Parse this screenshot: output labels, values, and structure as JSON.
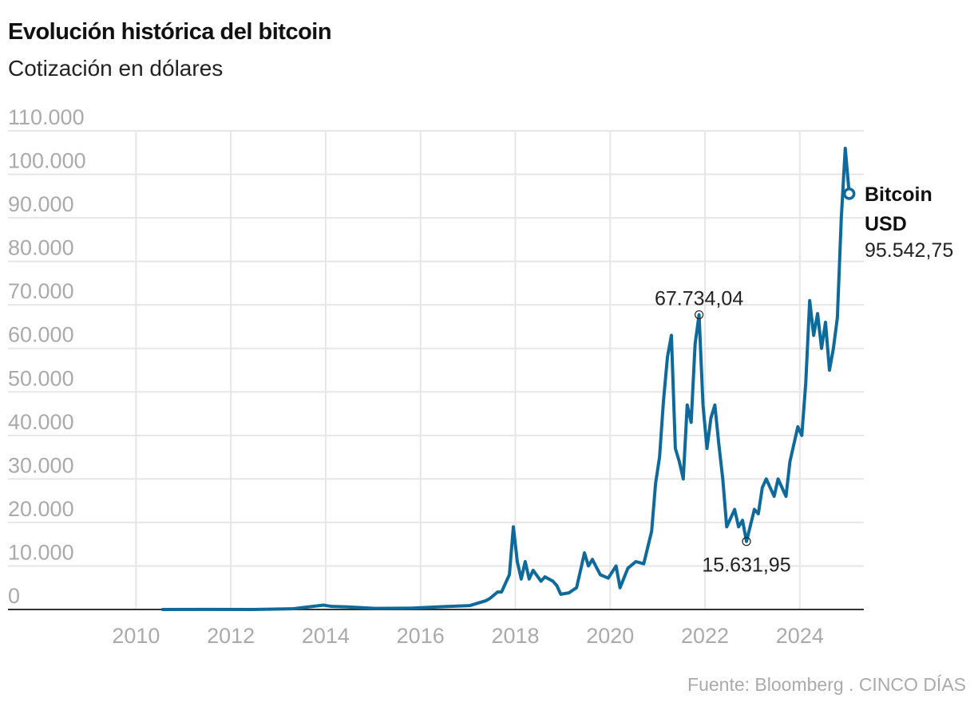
{
  "title": "Evolución histórica del bitcoin",
  "subtitle": "Cotización en dólares",
  "source": "Fuente: Bloomberg . CINCO DÍAS",
  "chart_data": {
    "type": "line",
    "title": "Evolución histórica del bitcoin",
    "subtitle": "Cotización en dólares",
    "xlabel": "",
    "ylabel": "",
    "xlim": [
      2007.3,
      2025.35
    ],
    "ylim": [
      0,
      110000
    ],
    "grid": true,
    "line_color": "#0f6a9c",
    "y_ticks": [
      0,
      10000,
      20000,
      30000,
      40000,
      50000,
      60000,
      70000,
      80000,
      90000,
      100000,
      110000
    ],
    "y_tick_labels": [
      "0",
      "10.000",
      "20.000",
      "30.000",
      "40.000",
      "50.000",
      "60.000",
      "70.000",
      "80.000",
      "90.000",
      "100.000",
      "110.000"
    ],
    "x_ticks": [
      2010,
      2012,
      2014,
      2016,
      2018,
      2020,
      2022,
      2024
    ],
    "x_tick_labels": [
      "2010",
      "2012",
      "2014",
      "2016",
      "2018",
      "2020",
      "2022",
      "2024"
    ],
    "series": [
      {
        "name": "Bitcoin USD",
        "points": [
          [
            "2010-07",
            0.1
          ],
          [
            "2011-06",
            20
          ],
          [
            "2012-06",
            7
          ],
          [
            "2013-04",
            150
          ],
          [
            "2013-12",
            1000
          ],
          [
            "2014-02",
            700
          ],
          [
            "2014-06",
            600
          ],
          [
            "2015-01",
            250
          ],
          [
            "2015-10",
            300
          ],
          [
            "2016-06",
            650
          ],
          [
            "2017-01",
            900
          ],
          [
            "2017-05",
            2000
          ],
          [
            "2017-06",
            2500
          ],
          [
            "2017-08",
            4000
          ],
          [
            "2017-09",
            4000
          ],
          [
            "2017-11",
            8000
          ],
          [
            "2017-12",
            19000
          ],
          [
            "2018-01",
            11000
          ],
          [
            "2018-02",
            7000
          ],
          [
            "2018-03",
            11000
          ],
          [
            "2018-04",
            7000
          ],
          [
            "2018-05",
            9000
          ],
          [
            "2018-07",
            6500
          ],
          [
            "2018-08",
            7500
          ],
          [
            "2018-10",
            6500
          ],
          [
            "2018-11",
            5500
          ],
          [
            "2018-12",
            3500
          ],
          [
            "2019-02",
            3800
          ],
          [
            "2019-04",
            5000
          ],
          [
            "2019-06",
            13000
          ],
          [
            "2019-07",
            10000
          ],
          [
            "2019-08",
            11500
          ],
          [
            "2019-10",
            8000
          ],
          [
            "2019-12",
            7200
          ],
          [
            "2020-02",
            10000
          ],
          [
            "2020-03",
            5000
          ],
          [
            "2020-05",
            9500
          ],
          [
            "2020-07",
            11000
          ],
          [
            "2020-09",
            10500
          ],
          [
            "2020-11",
            18000
          ],
          [
            "2020-12",
            29000
          ],
          [
            "2021-01",
            35000
          ],
          [
            "2021-02",
            48000
          ],
          [
            "2021-03",
            58000
          ],
          [
            "2021-04",
            63000
          ],
          [
            "2021-05",
            37000
          ],
          [
            "2021-06",
            34000
          ],
          [
            "2021-07",
            30000
          ],
          [
            "2021-08",
            47000
          ],
          [
            "2021-09",
            43000
          ],
          [
            "2021-10",
            61000
          ],
          [
            "2021-11",
            67734.04
          ],
          [
            "2021-12",
            47000
          ],
          [
            "2022-01",
            37000
          ],
          [
            "2022-02",
            44000
          ],
          [
            "2022-03",
            47000
          ],
          [
            "2022-04",
            38000
          ],
          [
            "2022-05",
            30000
          ],
          [
            "2022-06",
            19000
          ],
          [
            "2022-08",
            23000
          ],
          [
            "2022-09",
            19000
          ],
          [
            "2022-10",
            20500
          ],
          [
            "2022-11",
            15631.95
          ],
          [
            "2023-01",
            23000
          ],
          [
            "2023-02",
            22000
          ],
          [
            "2023-03",
            28000
          ],
          [
            "2023-04",
            30000
          ],
          [
            "2023-06",
            26000
          ],
          [
            "2023-07",
            30000
          ],
          [
            "2023-09",
            26000
          ],
          [
            "2023-10",
            34000
          ],
          [
            "2023-12",
            42000
          ],
          [
            "2024-01",
            40000
          ],
          [
            "2024-02",
            52000
          ],
          [
            "2024-03",
            71000
          ],
          [
            "2024-04",
            63000
          ],
          [
            "2024-05",
            68000
          ],
          [
            "2024-06",
            60000
          ],
          [
            "2024-07",
            66000
          ],
          [
            "2024-08",
            55000
          ],
          [
            "2024-09",
            60000
          ],
          [
            "2024-10",
            67000
          ],
          [
            "2024-11",
            90000
          ],
          [
            "2024-12",
            106000
          ],
          [
            "2025-01",
            95542.75
          ]
        ]
      }
    ],
    "annotations": [
      {
        "date": "2021-11",
        "value": 67734.04,
        "text": "67.734,04",
        "position": "above"
      },
      {
        "date": "2022-11",
        "value": 15631.95,
        "text": "15.631,95",
        "position": "below"
      }
    ],
    "end_label": {
      "line1": "Bitcoin",
      "line2": "USD",
      "value": "95.542,75"
    }
  }
}
